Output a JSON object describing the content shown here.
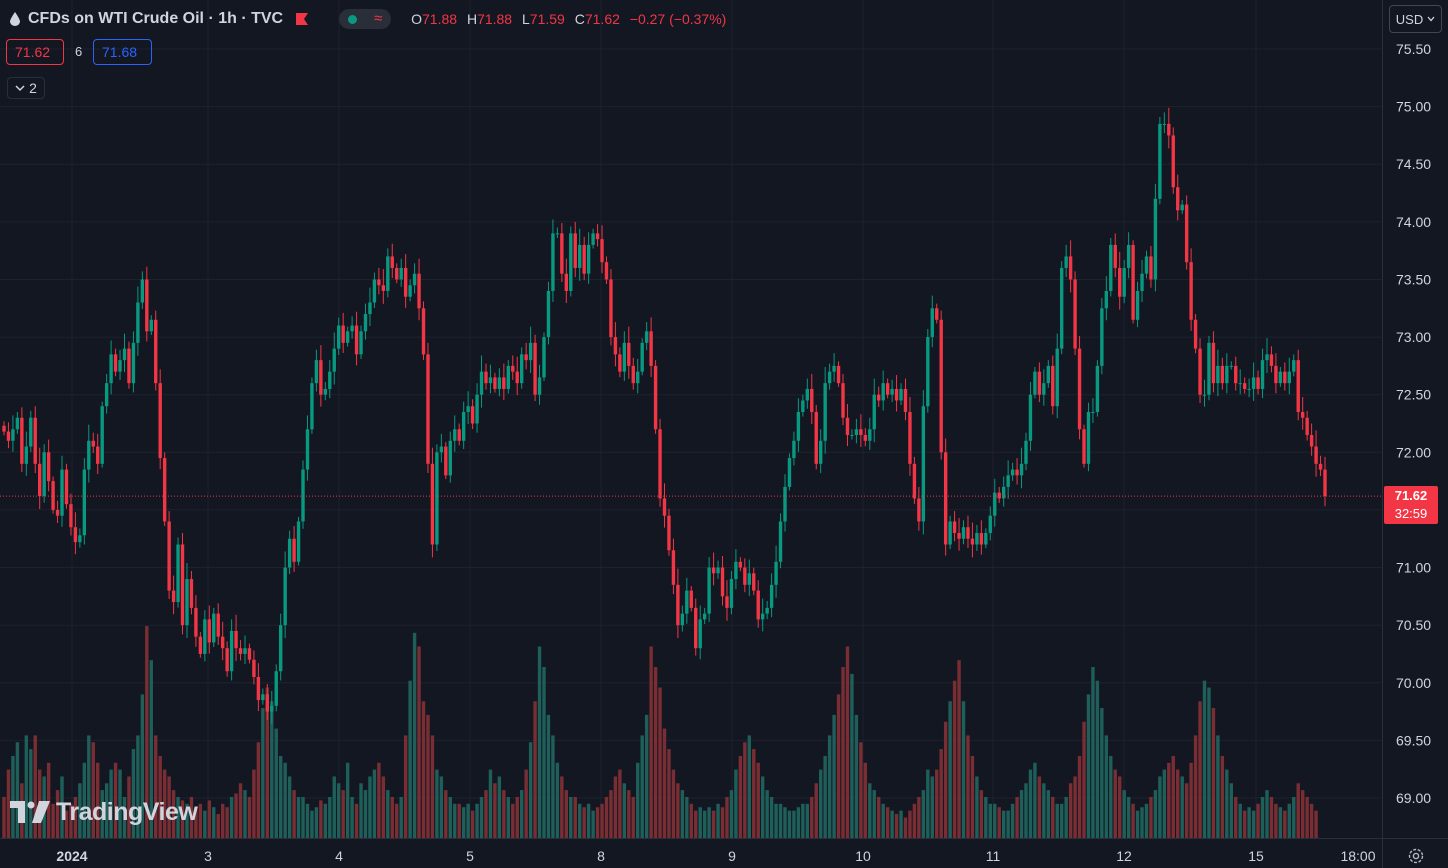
{
  "header": {
    "title": "CFDs on WTI Crude Oil · 1h · TVC",
    "ohlc": [
      {
        "k": "O",
        "v": "71.88"
      },
      {
        "k": "H",
        "v": "71.88"
      },
      {
        "k": "L",
        "v": "71.59"
      },
      {
        "k": "C",
        "v": "71.62"
      }
    ],
    "change": "−0.27 (−0.37%)",
    "icons": [
      "drop-icon",
      "flag-icon",
      "market-open-dot-icon",
      "wave-icon"
    ]
  },
  "quote": {
    "bid": "71.62",
    "spread": "6",
    "ask": "71.68"
  },
  "indicators_toggle": {
    "count": "2",
    "icon": "chevron-down-icon"
  },
  "currency": {
    "label": "USD",
    "icon": "chevron-down-icon"
  },
  "last_price": {
    "price": "71.62",
    "countdown": "32:59"
  },
  "watermark": {
    "text": "TradingView"
  },
  "colors": {
    "background": "#131722",
    "up": "#089981",
    "down": "#f23645",
    "volume_up": "#1f5f5a",
    "volume_down": "#7a2e34",
    "grid": "#1e222d",
    "text": "#d1d4dc"
  },
  "chart_data": {
    "type": "candlestick",
    "x_axis_labels": [
      "2024",
      "3",
      "4",
      "5",
      "8",
      "9",
      "10",
      "11",
      "12",
      "15",
      "18:00"
    ],
    "y_tick_labels": [
      "75.50",
      "75.00",
      "74.50",
      "74.00",
      "73.50",
      "73.00",
      "72.50",
      "72.00",
      "71.50",
      "71.00",
      "70.50",
      "70.00",
      "69.50",
      "69.00"
    ],
    "ylim": [
      68.85,
      75.65
    ],
    "last_price_line": 71.62,
    "grid": true,
    "series": [
      {
        "name": "price",
        "close": [
          72.18,
          72.1,
          72.2,
          72.3,
          71.9,
          72.05,
          72.3,
          71.9,
          71.62,
          72.0,
          71.75,
          71.5,
          71.45,
          71.85,
          71.55,
          71.35,
          71.22,
          71.28,
          71.85,
          72.1,
          72.05,
          71.9,
          72.4,
          72.6,
          72.85,
          72.7,
          72.8,
          72.9,
          72.6,
          72.95,
          73.3,
          73.5,
          73.05,
          73.15,
          72.6,
          71.95,
          71.4,
          70.8,
          70.7,
          71.2,
          70.5,
          70.9,
          70.65,
          70.4,
          70.25,
          70.55,
          70.35,
          70.6,
          70.4,
          70.3,
          70.1,
          70.45,
          70.3,
          70.25,
          70.3,
          70.2,
          70.05,
          69.85,
          69.9,
          69.75,
          69.8,
          70.1,
          70.5,
          71.0,
          71.25,
          71.05,
          71.4,
          71.85,
          72.2,
          72.6,
          72.8,
          72.5,
          72.55,
          72.7,
          72.9,
          73.1,
          72.95,
          73.05,
          73.1,
          72.85,
          73.05,
          73.2,
          73.3,
          73.5,
          73.45,
          73.4,
          73.7,
          73.6,
          73.5,
          73.6,
          73.35,
          73.45,
          73.55,
          73.25,
          72.85,
          71.9,
          71.2,
          72.0,
          72.05,
          71.8,
          72.1,
          72.2,
          72.1,
          72.35,
          72.4,
          72.25,
          72.5,
          72.7,
          72.6,
          72.65,
          72.55,
          72.65,
          72.55,
          72.75,
          72.7,
          72.6,
          72.85,
          72.8,
          72.95,
          72.5,
          72.65,
          73.0,
          73.4,
          73.9,
          73.9,
          73.55,
          73.4,
          73.9,
          73.6,
          73.8,
          73.55,
          73.8,
          73.9,
          73.85,
          73.65,
          73.5,
          73.0,
          72.85,
          72.7,
          72.95,
          72.75,
          72.6,
          72.7,
          72.95,
          73.05,
          72.75,
          72.2,
          71.6,
          71.45,
          71.15,
          70.85,
          70.5,
          70.6,
          70.8,
          70.65,
          70.3,
          70.55,
          70.6,
          71.0,
          70.95,
          71.0,
          70.75,
          70.65,
          70.9,
          71.05,
          71.0,
          70.85,
          70.95,
          70.8,
          70.55,
          70.6,
          70.65,
          70.85,
          71.05,
          71.4,
          71.7,
          71.95,
          72.1,
          72.35,
          72.45,
          72.55,
          72.35,
          71.9,
          72.1,
          72.6,
          72.7,
          72.75,
          72.6,
          72.3,
          72.15,
          72.15,
          72.2,
          72.15,
          72.1,
          72.2,
          72.5,
          72.45,
          72.6,
          72.5,
          72.55,
          72.45,
          72.55,
          72.35,
          71.9,
          71.6,
          71.4,
          72.4,
          73.0,
          73.25,
          73.15,
          72.0,
          71.2,
          71.4,
          71.3,
          71.25,
          71.35,
          71.25,
          71.2,
          71.3,
          71.2,
          71.3,
          71.45,
          71.65,
          71.6,
          71.7,
          71.8,
          71.85,
          71.8,
          71.9,
          72.1,
          72.5,
          72.7,
          72.5,
          72.6,
          72.75,
          72.4,
          72.9,
          73.6,
          73.7,
          73.5,
          72.9,
          72.2,
          71.9,
          72.35,
          72.35,
          72.75,
          73.25,
          73.4,
          73.8,
          73.6,
          73.35,
          73.6,
          73.8,
          73.15,
          73.4,
          73.55,
          73.7,
          73.5,
          74.2,
          74.85,
          74.85,
          74.75,
          74.3,
          74.1,
          74.15,
          73.65,
          73.15,
          72.9,
          72.5,
          72.5,
          72.95,
          72.6,
          72.75,
          72.6,
          72.75,
          72.75,
          72.6,
          72.6,
          72.55,
          72.55,
          72.65,
          72.55,
          72.8,
          72.85,
          72.75,
          72.6,
          72.7,
          72.6,
          72.7,
          72.8,
          72.35,
          72.3,
          72.15,
          72.05,
          71.9,
          71.85,
          71.62
        ],
        "open_low_high_note": "open = previous close"
      },
      {
        "name": "volume",
        "values": [
          12,
          20,
          24,
          28,
          16,
          30,
          26,
          30,
          20,
          18,
          22,
          10,
          14,
          18,
          8,
          10,
          12,
          16,
          22,
          30,
          28,
          22,
          14,
          16,
          20,
          22,
          20,
          12,
          18,
          26,
          30,
          42,
          62,
          52,
          30,
          24,
          20,
          18,
          14,
          12,
          11,
          10,
          12,
          9,
          10,
          8,
          11,
          9,
          7,
          10,
          9,
          12,
          13,
          16,
          14,
          12,
          20,
          28,
          38,
          44,
          40,
          32,
          24,
          22,
          18,
          14,
          12,
          12,
          10,
          8,
          9,
          11,
          10,
          12,
          18,
          16,
          14,
          22,
          12,
          10,
          16,
          14,
          18,
          20,
          22,
          18,
          14,
          12,
          10,
          12,
          30,
          46,
          60,
          56,
          40,
          36,
          30,
          20,
          18,
          14,
          12,
          10,
          10,
          9,
          10,
          8,
          10,
          12,
          14,
          20,
          16,
          18,
          14,
          12,
          10,
          12,
          14,
          20,
          28,
          40,
          56,
          50,
          36,
          30,
          22,
          18,
          14,
          12,
          12,
          10,
          9,
          10,
          8,
          9,
          10,
          12,
          14,
          18,
          20,
          16,
          14,
          12,
          22,
          30,
          36,
          56,
          50,
          44,
          32,
          26,
          20,
          16,
          14,
          12,
          10,
          8,
          9,
          8,
          9,
          8,
          10,
          9,
          12,
          14,
          20,
          24,
          28,
          30,
          26,
          22,
          18,
          14,
          12,
          10,
          10,
          9,
          8,
          8,
          9,
          10,
          10,
          12,
          16,
          20,
          24,
          30,
          36,
          42,
          50,
          56,
          48,
          36,
          28,
          22,
          16,
          14,
          12,
          10,
          9,
          8,
          7,
          8,
          6,
          8,
          10,
          12,
          14,
          20,
          18,
          20,
          26,
          34,
          40,
          46,
          52,
          40,
          30,
          24,
          18,
          14,
          12,
          10,
          10,
          9,
          8,
          8,
          10,
          12,
          14,
          16,
          20,
          22,
          18,
          16,
          14,
          12,
          10,
          10,
          12,
          16,
          18,
          24,
          34,
          42,
          50,
          46,
          38,
          30,
          24,
          20,
          18,
          14,
          12,
          10,
          8,
          9,
          10,
          12,
          14,
          18,
          20,
          22,
          24,
          20,
          18,
          16,
          22,
          30,
          40,
          46,
          44,
          38,
          30,
          24,
          20,
          16,
          12,
          10,
          8,
          9,
          8,
          10,
          12,
          14,
          12,
          10,
          9,
          8,
          10,
          12,
          16,
          14,
          12,
          10,
          8
        ]
      }
    ]
  }
}
